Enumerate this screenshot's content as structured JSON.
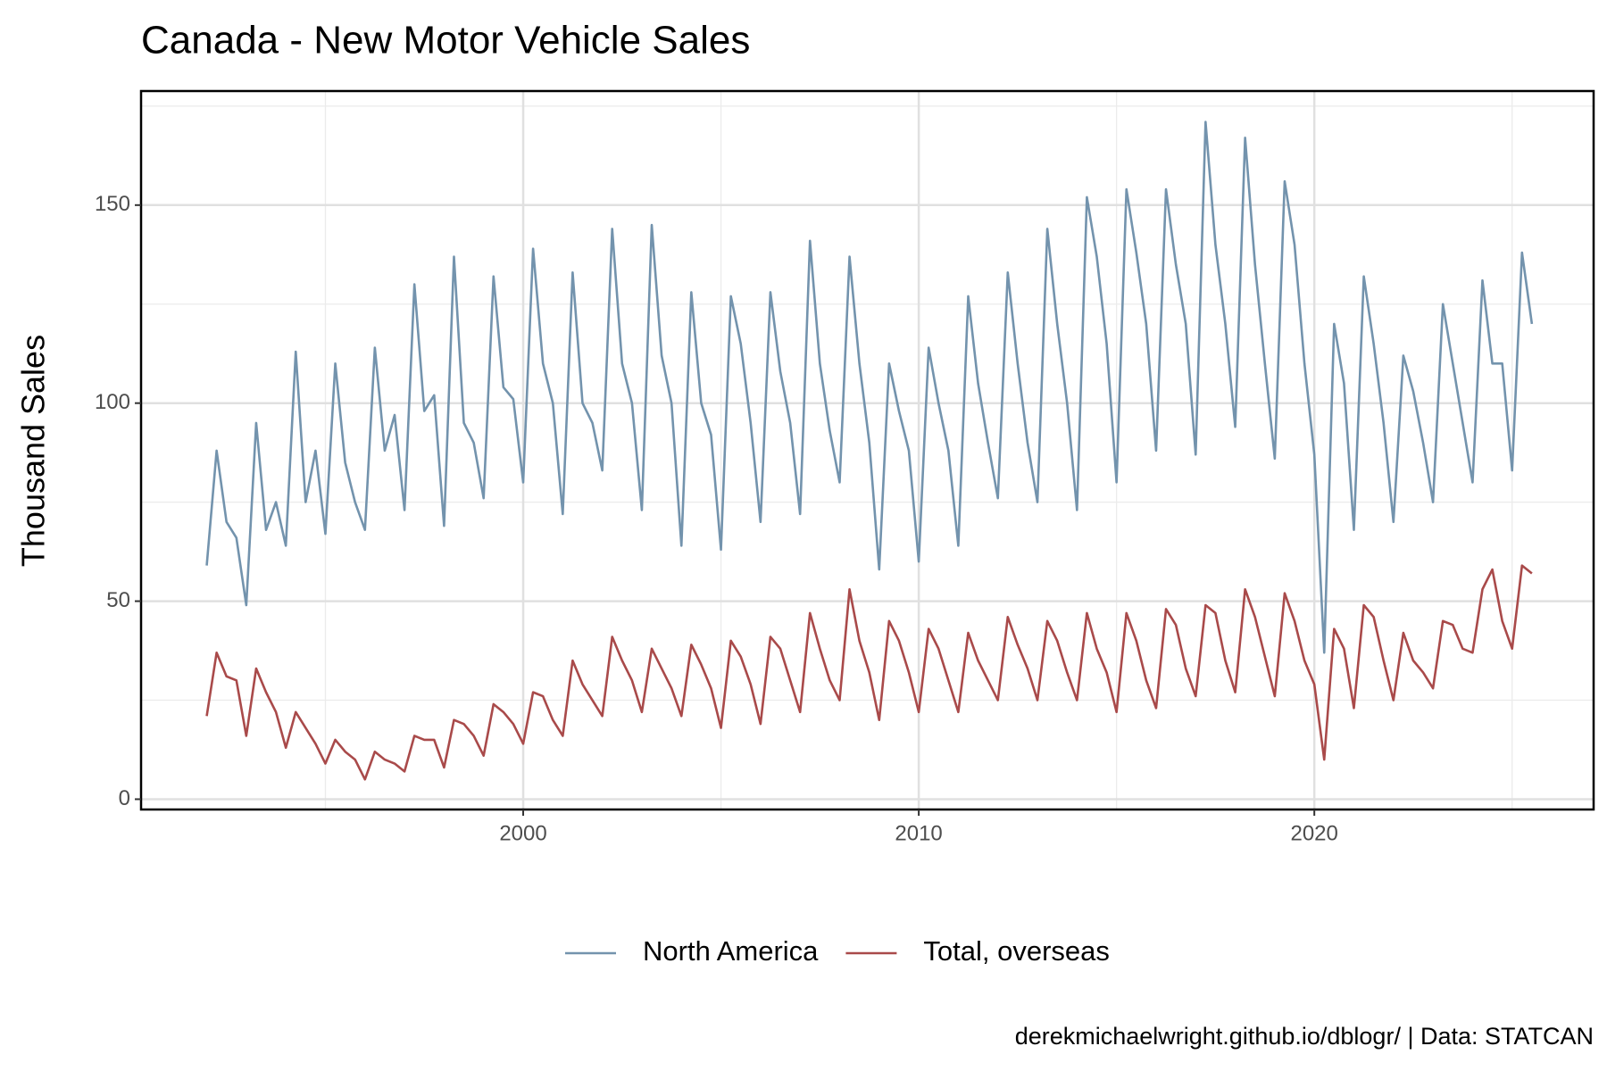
{
  "chart_data": {
    "type": "line",
    "title": "Canada - New Motor Vehicle Sales",
    "ylabel": "Thousand Sales",
    "caption": "derekmichaelwright.github.io/dblogr/ | Data: STATCAN",
    "x": [
      1992,
      1992.25,
      1992.5,
      1992.75,
      1993,
      1993.25,
      1993.5,
      1993.75,
      1994,
      1994.25,
      1994.5,
      1994.75,
      1995,
      1995.25,
      1995.5,
      1995.75,
      1996,
      1996.25,
      1996.5,
      1996.75,
      1997,
      1997.25,
      1997.5,
      1997.75,
      1998,
      1998.25,
      1998.5,
      1998.75,
      1999,
      1999.25,
      1999.5,
      1999.75,
      2000,
      2000.25,
      2000.5,
      2000.75,
      2001,
      2001.25,
      2001.5,
      2001.75,
      2002,
      2002.25,
      2002.5,
      2002.75,
      2003,
      2003.25,
      2003.5,
      2003.75,
      2004,
      2004.25,
      2004.5,
      2004.75,
      2005,
      2005.25,
      2005.5,
      2005.75,
      2006,
      2006.25,
      2006.5,
      2006.75,
      2007,
      2007.25,
      2007.5,
      2007.75,
      2008,
      2008.25,
      2008.5,
      2008.75,
      2009,
      2009.25,
      2009.5,
      2009.75,
      2010,
      2010.25,
      2010.5,
      2010.75,
      2011,
      2011.25,
      2011.5,
      2011.75,
      2012,
      2012.25,
      2012.5,
      2012.75,
      2013,
      2013.25,
      2013.5,
      2013.75,
      2014,
      2014.25,
      2014.5,
      2014.75,
      2015,
      2015.25,
      2015.5,
      2015.75,
      2016,
      2016.25,
      2016.5,
      2016.75,
      2017,
      2017.25,
      2017.5,
      2017.75,
      2018,
      2018.25,
      2018.5,
      2018.75,
      2019,
      2019.25,
      2019.5,
      2019.75,
      2020,
      2020.25,
      2020.5,
      2020.75,
      2021,
      2021.25,
      2021.5,
      2021.75,
      2022,
      2022.25,
      2022.5,
      2022.75,
      2023,
      2023.25,
      2023.5,
      2023.75,
      2024,
      2024.25,
      2024.5,
      2024.75,
      2025,
      2025.25,
      2025.5
    ],
    "series": [
      {
        "name": "North America",
        "color": "#7393ad",
        "values": [
          59,
          88,
          70,
          66,
          49,
          95,
          68,
          75,
          64,
          113,
          75,
          88,
          67,
          110,
          85,
          75,
          68,
          114,
          88,
          97,
          73,
          130,
          98,
          102,
          69,
          137,
          95,
          90,
          76,
          132,
          104,
          101,
          80,
          139,
          110,
          100,
          72,
          133,
          100,
          95,
          83,
          144,
          110,
          100,
          73,
          145,
          112,
          100,
          64,
          128,
          100,
          92,
          63,
          127,
          115,
          95,
          70,
          128,
          108,
          95,
          72,
          141,
          110,
          93,
          80,
          137,
          110,
          90,
          58,
          110,
          98,
          88,
          60,
          114,
          100,
          88,
          64,
          127,
          105,
          90,
          76,
          133,
          110,
          90,
          75,
          144,
          120,
          100,
          73,
          152,
          137,
          115,
          80,
          154,
          138,
          120,
          88,
          154,
          135,
          120,
          87,
          171,
          140,
          120,
          94,
          167,
          135,
          110,
          86,
          156,
          140,
          110,
          87,
          37,
          120,
          105,
          68,
          132,
          115,
          95,
          70,
          112,
          103,
          90,
          75,
          125,
          110,
          95,
          80,
          131,
          110,
          110,
          83,
          138,
          120
        ]
      },
      {
        "name": "Total, overseas",
        "color": "#a94a4a",
        "values": [
          21,
          37,
          31,
          30,
          16,
          33,
          27,
          22,
          13,
          22,
          18,
          14,
          9,
          15,
          12,
          10,
          5,
          12,
          10,
          9,
          7,
          16,
          15,
          15,
          8,
          20,
          19,
          16,
          11,
          24,
          22,
          19,
          14,
          27,
          26,
          20,
          16,
          35,
          29,
          25,
          21,
          41,
          35,
          30,
          22,
          38,
          33,
          28,
          21,
          39,
          34,
          28,
          18,
          40,
          36,
          29,
          19,
          41,
          38,
          30,
          22,
          47,
          38,
          30,
          25,
          53,
          40,
          32,
          20,
          45,
          40,
          32,
          22,
          43,
          38,
          30,
          22,
          42,
          35,
          30,
          25,
          46,
          39,
          33,
          25,
          45,
          40,
          32,
          25,
          47,
          38,
          32,
          22,
          47,
          40,
          30,
          23,
          48,
          44,
          33,
          26,
          49,
          47,
          35,
          27,
          53,
          46,
          36,
          26,
          52,
          45,
          35,
          29,
          10,
          43,
          38,
          23,
          49,
          46,
          35,
          25,
          42,
          35,
          32,
          28,
          45,
          44,
          38,
          37,
          53,
          58,
          45,
          38,
          59,
          57
        ]
      }
    ],
    "xlim": [
      1990.34,
      2027.06
    ],
    "ylim": [
      -2.6,
      178.8
    ],
    "xticks": [
      2000,
      2010,
      2020
    ],
    "yticks": [
      0,
      50,
      100,
      150
    ],
    "xticks_minor": [
      1995,
      2005,
      2015,
      2025
    ],
    "yticks_minor": [
      25,
      75,
      125,
      175
    ],
    "grid": true,
    "legend": "bottom"
  }
}
